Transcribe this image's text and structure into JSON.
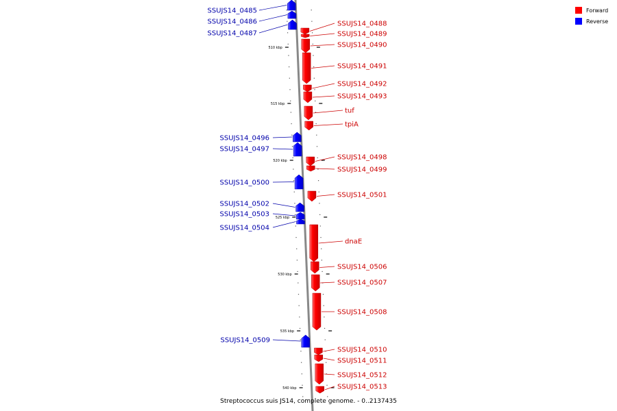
{
  "caption": "Streptococcus suis JS14, complete genome. - 0..2137435",
  "legend": [
    {
      "label": "Forward",
      "color": "#ff0000"
    },
    {
      "label": "Reverse",
      "color": "#0000ff"
    }
  ],
  "colors": {
    "forward": "#ff0000",
    "reverse": "#0000ff",
    "backbone": "#888888",
    "label_forward": "#cc0000",
    "label_reverse": "#0000aa"
  },
  "ticks": [
    "510 kbp",
    "515 kbp",
    "520 kbp",
    "525 kbp",
    "530 kbp",
    "535 kbp",
    "540 kbp"
  ],
  "genes": [
    {
      "name": "SSUJS14_0485",
      "strand": "reverse"
    },
    {
      "name": "SSUJS14_0486",
      "strand": "reverse"
    },
    {
      "name": "SSUJS14_0487",
      "strand": "reverse"
    },
    {
      "name": "SSUJS14_0488",
      "strand": "forward"
    },
    {
      "name": "SSUJS14_0489",
      "strand": "forward"
    },
    {
      "name": "SSUJS14_0490",
      "strand": "forward"
    },
    {
      "name": "SSUJS14_0491",
      "strand": "forward"
    },
    {
      "name": "SSUJS14_0492",
      "strand": "forward"
    },
    {
      "name": "SSUJS14_0493",
      "strand": "forward"
    },
    {
      "name": "tuf",
      "strand": "forward"
    },
    {
      "name": "tpiA",
      "strand": "forward"
    },
    {
      "name": "SSUJS14_0496",
      "strand": "reverse"
    },
    {
      "name": "SSUJS14_0497",
      "strand": "reverse"
    },
    {
      "name": "SSUJS14_0498",
      "strand": "forward"
    },
    {
      "name": "SSUJS14_0499",
      "strand": "forward"
    },
    {
      "name": "SSUJS14_0500",
      "strand": "reverse"
    },
    {
      "name": "SSUJS14_0501",
      "strand": "forward"
    },
    {
      "name": "SSUJS14_0502",
      "strand": "reverse"
    },
    {
      "name": "SSUJS14_0503",
      "strand": "reverse"
    },
    {
      "name": "SSUJS14_0504",
      "strand": "reverse"
    },
    {
      "name": "dnaE",
      "strand": "forward"
    },
    {
      "name": "SSUJS14_0506",
      "strand": "forward"
    },
    {
      "name": "SSUJS14_0507",
      "strand": "forward"
    },
    {
      "name": "SSUJS14_0508",
      "strand": "forward"
    },
    {
      "name": "SSUJS14_0509",
      "strand": "reverse"
    },
    {
      "name": "SSUJS14_0510",
      "strand": "forward"
    },
    {
      "name": "SSUJS14_0511",
      "strand": "forward"
    },
    {
      "name": "SSUJS14_0512",
      "strand": "forward"
    },
    {
      "name": "SSUJS14_0513",
      "strand": "forward"
    }
  ]
}
